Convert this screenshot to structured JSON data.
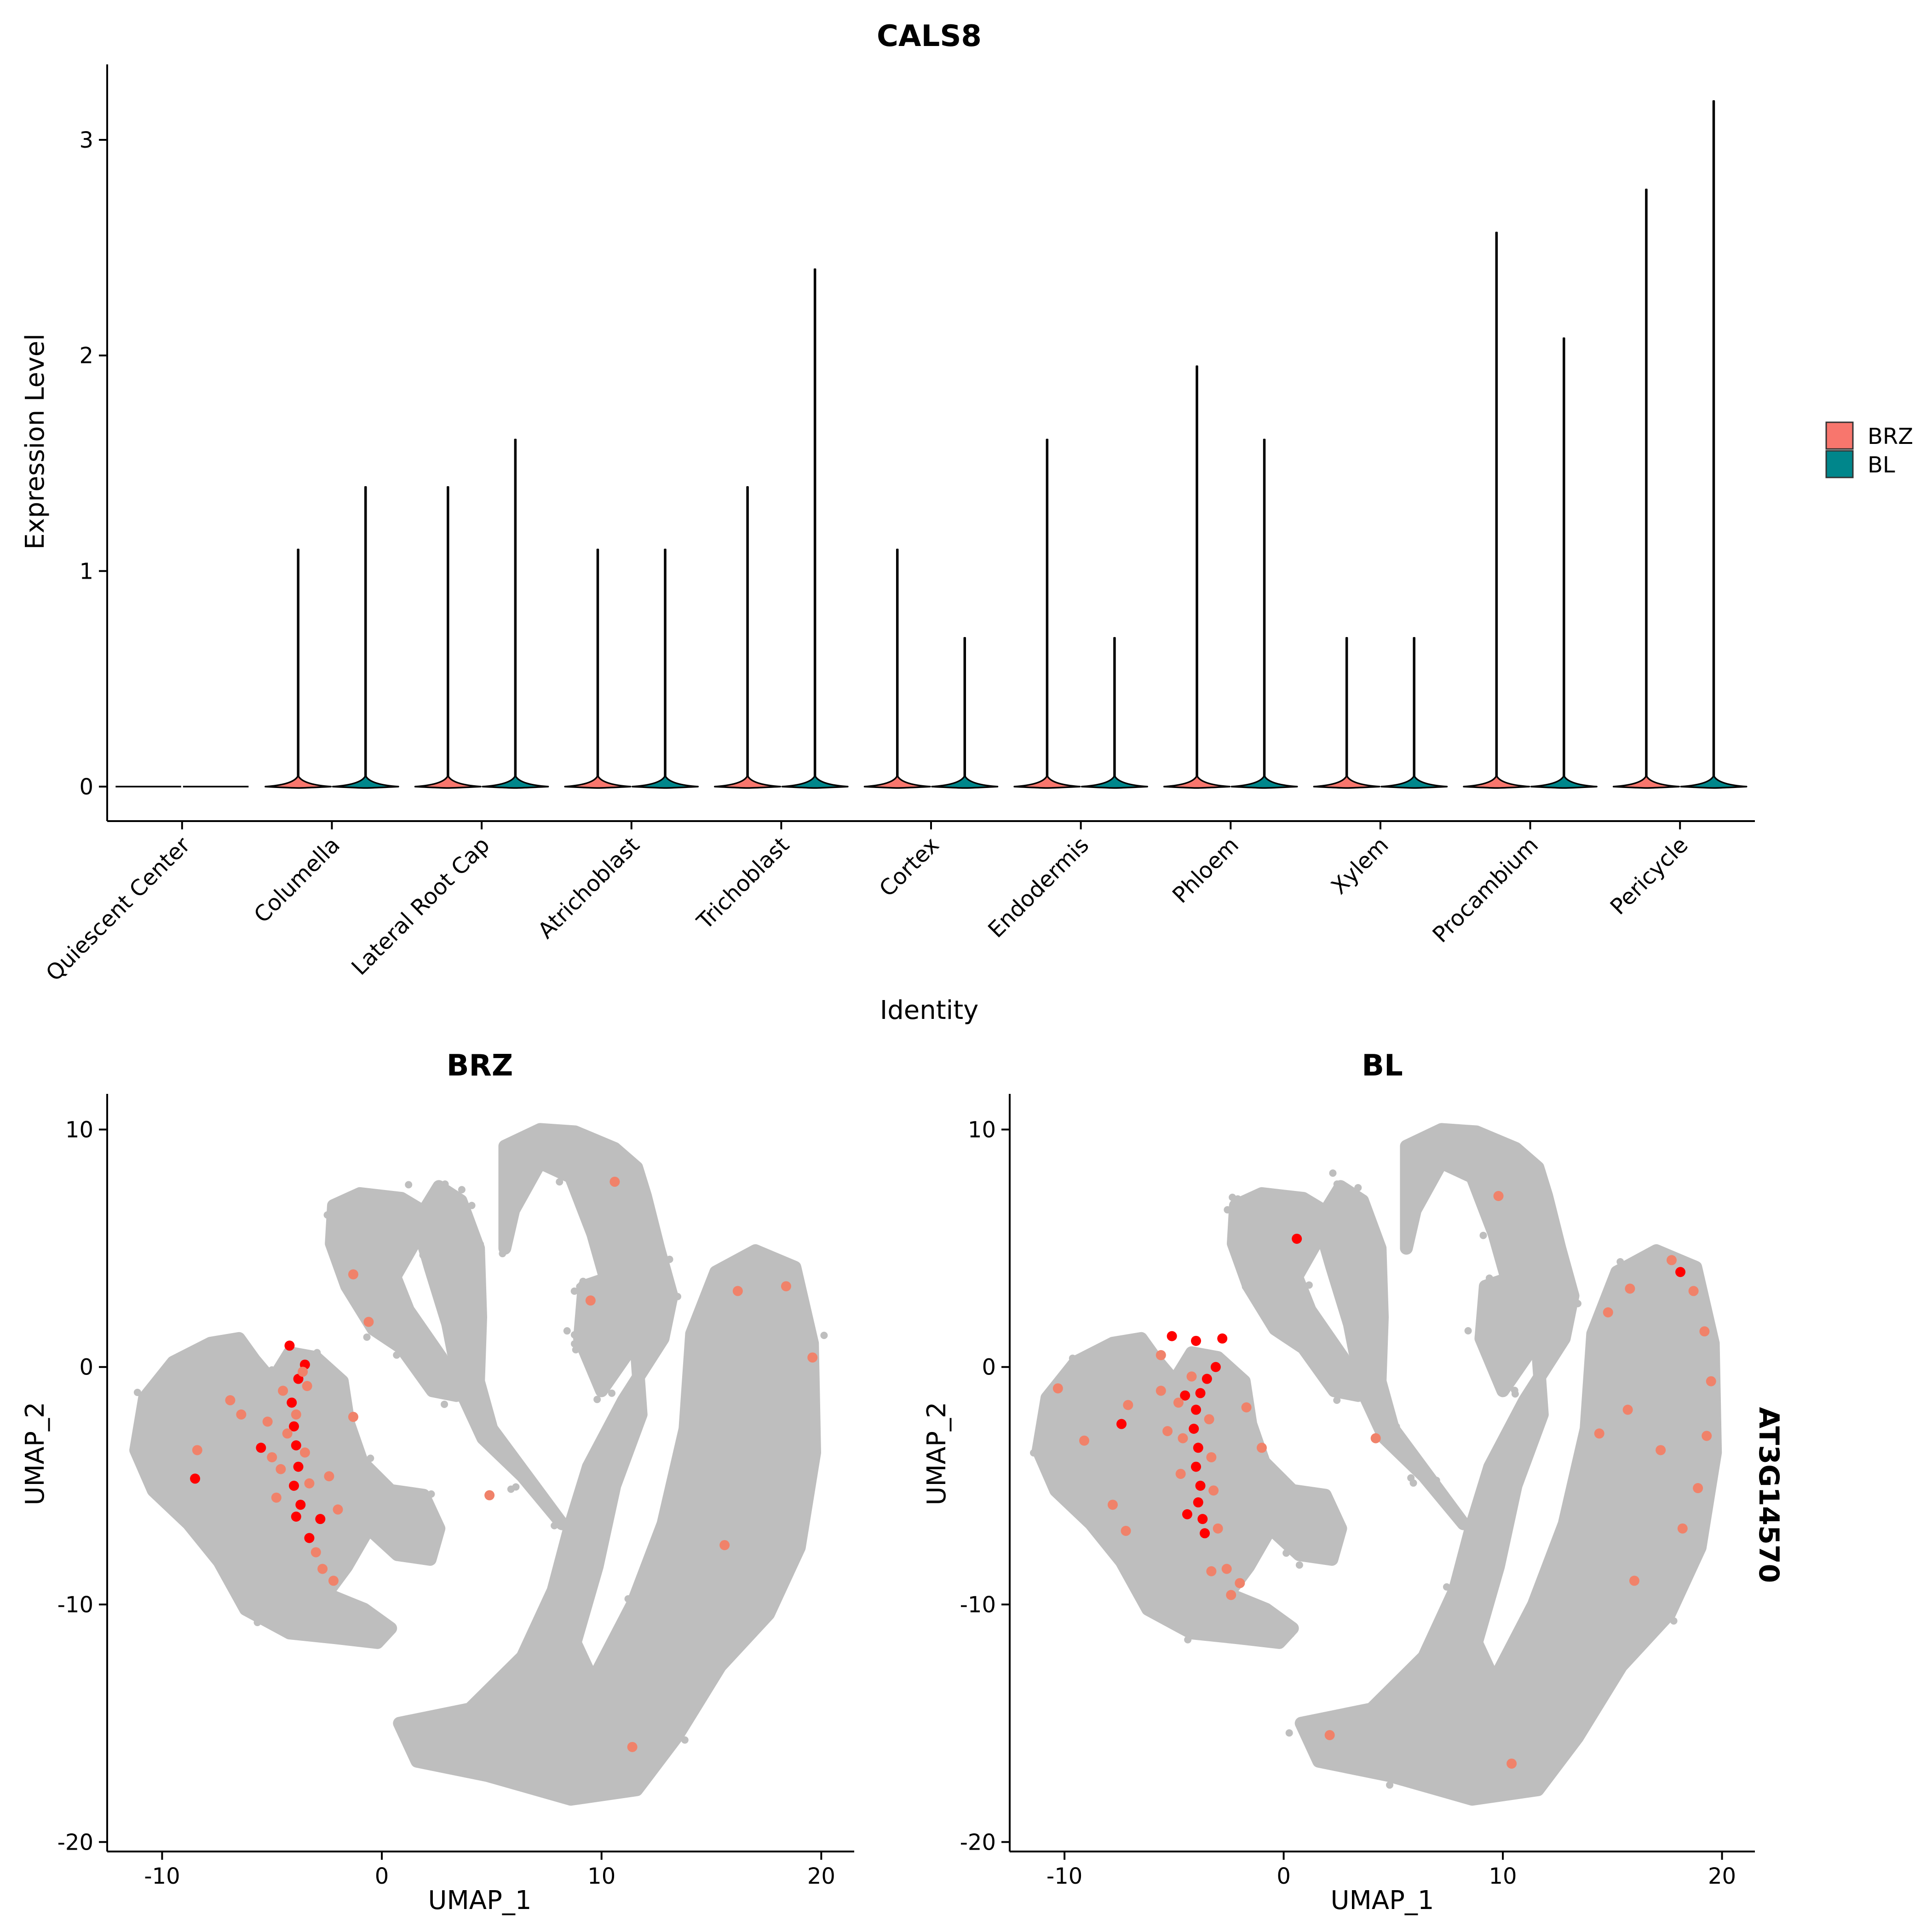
{
  "colors": {
    "brz": "#F8766D",
    "bl": "#00868B",
    "cell_bg": "#BEBEBE",
    "expr_low": "#F0826A",
    "expr_high": "#FF0000"
  },
  "chart_data": [
    {
      "type": "violin",
      "title": "CALS8",
      "xlabel": "Identity",
      "ylabel": "Expression Level",
      "ylim": [
        -0.16,
        3.35
      ],
      "yticks": [
        0,
        1,
        2,
        3
      ],
      "categories": [
        "Quiescent Center",
        "Columella",
        "Lateral Root Cap",
        "Atrichoblast",
        "Trichoblast",
        "Cortex",
        "Endodermis",
        "Phloem",
        "Xylem",
        "Procambium",
        "Pericycle"
      ],
      "series": [
        {
          "name": "BRZ",
          "max": [
            0,
            1.1,
            1.39,
            1.1,
            1.39,
            1.1,
            1.61,
            1.95,
            0.69,
            2.57,
            2.77
          ]
        },
        {
          "name": "BL",
          "max": [
            0,
            1.39,
            1.61,
            1.1,
            2.4,
            0.69,
            0.69,
            1.61,
            0.69,
            2.08,
            3.18
          ]
        }
      ],
      "legend": {
        "position": "right",
        "entries": [
          "BRZ",
          "BL"
        ]
      },
      "grid": false
    },
    {
      "type": "scatter",
      "title": "BRZ",
      "xlabel": "UMAP_1",
      "ylabel": "UMAP_2",
      "xlim": [
        -12.5,
        21.5
      ],
      "ylim": [
        -20.4,
        11.5
      ],
      "xticks": [
        -10,
        0,
        10,
        20
      ],
      "yticks": [
        -20,
        -10,
        0,
        10
      ],
      "expressing_cells": [
        {
          "x": -4.2,
          "y": 0.9,
          "level": "high"
        },
        {
          "x": -3.5,
          "y": 0.1,
          "level": "high"
        },
        {
          "x": -3.8,
          "y": -0.5,
          "level": "high"
        },
        {
          "x": -4.1,
          "y": -1.5,
          "level": "high"
        },
        {
          "x": -4.0,
          "y": -2.5,
          "level": "high"
        },
        {
          "x": -3.9,
          "y": -3.3,
          "level": "high"
        },
        {
          "x": -3.8,
          "y": -4.2,
          "level": "high"
        },
        {
          "x": -4.0,
          "y": -5.0,
          "level": "high"
        },
        {
          "x": -3.7,
          "y": -5.8,
          "level": "high"
        },
        {
          "x": -3.9,
          "y": -6.3,
          "level": "high"
        },
        {
          "x": -3.3,
          "y": -7.2,
          "level": "high"
        },
        {
          "x": -2.8,
          "y": -6.4,
          "level": "high"
        },
        {
          "x": -8.5,
          "y": -4.7,
          "level": "high"
        },
        {
          "x": -5.5,
          "y": -3.4,
          "level": "high"
        },
        {
          "x": -3.6,
          "y": -0.2,
          "level": "low"
        },
        {
          "x": -3.4,
          "y": -0.8,
          "level": "low"
        },
        {
          "x": -4.5,
          "y": -1.0,
          "level": "low"
        },
        {
          "x": -3.9,
          "y": -2.0,
          "level": "low"
        },
        {
          "x": -4.3,
          "y": -2.8,
          "level": "low"
        },
        {
          "x": -3.5,
          "y": -3.6,
          "level": "low"
        },
        {
          "x": -4.6,
          "y": -4.3,
          "level": "low"
        },
        {
          "x": -3.3,
          "y": -4.9,
          "level": "low"
        },
        {
          "x": -5.2,
          "y": -2.3,
          "level": "low"
        },
        {
          "x": -5.0,
          "y": -3.8,
          "level": "low"
        },
        {
          "x": -4.8,
          "y": -5.5,
          "level": "low"
        },
        {
          "x": -3.0,
          "y": -7.8,
          "level": "low"
        },
        {
          "x": -2.7,
          "y": -8.5,
          "level": "low"
        },
        {
          "x": -2.2,
          "y": -9.0,
          "level": "low"
        },
        {
          "x": -2.0,
          "y": -6.0,
          "level": "low"
        },
        {
          "x": -1.3,
          "y": -2.1,
          "level": "low"
        },
        {
          "x": -6.4,
          "y": -2.0,
          "level": "low"
        },
        {
          "x": -6.9,
          "y": -1.4,
          "level": "low"
        },
        {
          "x": -8.4,
          "y": -3.5,
          "level": "low"
        },
        {
          "x": -1.3,
          "y": 3.9,
          "level": "low"
        },
        {
          "x": -0.6,
          "y": 1.9,
          "level": "low"
        },
        {
          "x": 9.5,
          "y": 2.8,
          "level": "low"
        },
        {
          "x": 10.6,
          "y": 7.8,
          "level": "low"
        },
        {
          "x": 16.2,
          "y": 3.2,
          "level": "low"
        },
        {
          "x": 18.4,
          "y": 3.4,
          "level": "low"
        },
        {
          "x": 19.6,
          "y": 0.4,
          "level": "low"
        },
        {
          "x": 15.6,
          "y": -7.5,
          "level": "low"
        },
        {
          "x": 11.4,
          "y": -16.0,
          "level": "low"
        },
        {
          "x": 4.9,
          "y": -5.4,
          "level": "low"
        },
        {
          "x": -2.4,
          "y": -4.6,
          "level": "low"
        }
      ]
    },
    {
      "type": "scatter",
      "title": "BL",
      "xlabel": "UMAP_1",
      "ylabel": "UMAP_2",
      "xlim": [
        -12.5,
        21.5
      ],
      "ylim": [
        -20.4,
        11.5
      ],
      "xticks": [
        -10,
        0,
        10,
        20
      ],
      "yticks": [
        -20,
        -10,
        0,
        10
      ],
      "row_label": "AT3G14570",
      "expressing_cells": [
        {
          "x": 0.6,
          "y": 5.4,
          "level": "high"
        },
        {
          "x": -5.1,
          "y": 1.3,
          "level": "high"
        },
        {
          "x": -4.0,
          "y": 1.1,
          "level": "high"
        },
        {
          "x": -2.8,
          "y": 1.2,
          "level": "high"
        },
        {
          "x": -3.1,
          "y": 0.0,
          "level": "high"
        },
        {
          "x": -3.5,
          "y": -0.5,
          "level": "high"
        },
        {
          "x": -3.8,
          "y": -1.1,
          "level": "high"
        },
        {
          "x": -4.0,
          "y": -1.8,
          "level": "high"
        },
        {
          "x": -4.1,
          "y": -2.6,
          "level": "high"
        },
        {
          "x": -3.9,
          "y": -3.4,
          "level": "high"
        },
        {
          "x": -4.0,
          "y": -4.2,
          "level": "high"
        },
        {
          "x": -3.8,
          "y": -5.0,
          "level": "high"
        },
        {
          "x": -3.9,
          "y": -5.7,
          "level": "high"
        },
        {
          "x": -3.7,
          "y": -6.4,
          "level": "high"
        },
        {
          "x": -3.6,
          "y": -7.0,
          "level": "high"
        },
        {
          "x": -4.4,
          "y": -6.2,
          "level": "high"
        },
        {
          "x": -4.5,
          "y": -1.2,
          "level": "high"
        },
        {
          "x": -7.4,
          "y": -2.4,
          "level": "high"
        },
        {
          "x": 18.1,
          "y": 4.0,
          "level": "high"
        },
        {
          "x": -4.2,
          "y": -0.4,
          "level": "low"
        },
        {
          "x": -4.8,
          "y": -1.5,
          "level": "low"
        },
        {
          "x": -3.4,
          "y": -2.2,
          "level": "low"
        },
        {
          "x": -4.6,
          "y": -3.0,
          "level": "low"
        },
        {
          "x": -3.3,
          "y": -3.8,
          "level": "low"
        },
        {
          "x": -4.7,
          "y": -4.5,
          "level": "low"
        },
        {
          "x": -3.2,
          "y": -5.2,
          "level": "low"
        },
        {
          "x": -5.3,
          "y": -2.7,
          "level": "low"
        },
        {
          "x": -5.6,
          "y": -1.0,
          "level": "low"
        },
        {
          "x": -3.0,
          "y": -6.8,
          "level": "low"
        },
        {
          "x": -2.6,
          "y": -8.5,
          "level": "low"
        },
        {
          "x": -2.4,
          "y": -9.6,
          "level": "low"
        },
        {
          "x": -2.0,
          "y": -9.1,
          "level": "low"
        },
        {
          "x": -3.3,
          "y": -8.6,
          "level": "low"
        },
        {
          "x": -1.7,
          "y": -1.7,
          "level": "low"
        },
        {
          "x": -1.0,
          "y": -3.4,
          "level": "low"
        },
        {
          "x": -7.8,
          "y": -5.8,
          "level": "low"
        },
        {
          "x": -7.2,
          "y": -6.9,
          "level": "low"
        },
        {
          "x": -9.1,
          "y": -3.1,
          "level": "low"
        },
        {
          "x": -10.3,
          "y": -0.9,
          "level": "low"
        },
        {
          "x": -7.1,
          "y": -1.6,
          "level": "low"
        },
        {
          "x": -5.6,
          "y": 0.5,
          "level": "low"
        },
        {
          "x": 9.8,
          "y": 7.2,
          "level": "low"
        },
        {
          "x": 14.8,
          "y": 2.3,
          "level": "low"
        },
        {
          "x": 15.8,
          "y": 3.3,
          "level": "low"
        },
        {
          "x": 17.7,
          "y": 4.5,
          "level": "low"
        },
        {
          "x": 18.7,
          "y": 3.2,
          "level": "low"
        },
        {
          "x": 19.2,
          "y": 1.5,
          "level": "low"
        },
        {
          "x": 19.5,
          "y": -0.6,
          "level": "low"
        },
        {
          "x": 19.3,
          "y": -2.9,
          "level": "low"
        },
        {
          "x": 18.9,
          "y": -5.1,
          "level": "low"
        },
        {
          "x": 18.2,
          "y": -6.8,
          "level": "low"
        },
        {
          "x": 17.2,
          "y": -3.5,
          "level": "low"
        },
        {
          "x": 15.7,
          "y": -1.8,
          "level": "low"
        },
        {
          "x": 14.4,
          "y": -2.8,
          "level": "low"
        },
        {
          "x": 16.0,
          "y": -9.0,
          "level": "low"
        },
        {
          "x": 4.2,
          "y": -3.0,
          "level": "low"
        },
        {
          "x": 2.1,
          "y": -15.5,
          "level": "low"
        },
        {
          "x": 10.4,
          "y": -16.7,
          "level": "low"
        }
      ]
    }
  ]
}
